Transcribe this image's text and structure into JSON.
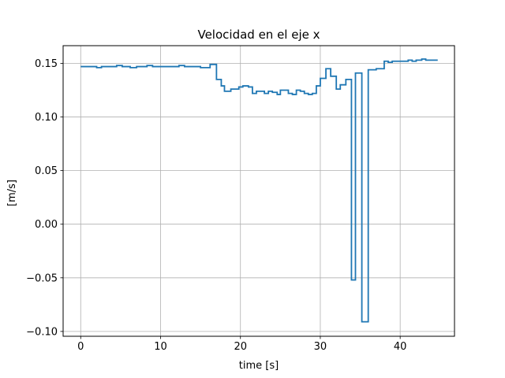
{
  "chart_data": {
    "type": "line",
    "title": "Velocidad en el eje x",
    "xlabel": "time [s]",
    "ylabel": "[m/s]",
    "xlim": [
      -2.2,
      46.8
    ],
    "ylim": [
      -0.1045,
      0.1665
    ],
    "grid": true,
    "line_style": "steps-post",
    "x_ticks": [
      0,
      10,
      20,
      30,
      40
    ],
    "x_tick_labels": [
      "0",
      "10",
      "20",
      "30",
      "40"
    ],
    "y_ticks": [
      -0.1,
      -0.05,
      0.0,
      0.05,
      0.1,
      0.15
    ],
    "y_tick_labels": [
      "−0.10",
      "−0.05",
      "0.00",
      "0.05",
      "0.10",
      "0.15"
    ],
    "colors": {
      "series": "#1f77b4",
      "grid": "#b0b0b0",
      "axes": "#000000"
    },
    "series": [
      {
        "x": [
          0,
          2,
          2.6,
          4.5,
          5.2,
          6.2,
          7,
          8.3,
          9,
          10,
          12.3,
          13,
          14.5,
          15,
          16.2,
          17,
          17.6,
          18,
          18.8,
          19.8,
          20.3,
          21,
          21.5,
          22,
          23,
          23.5,
          24,
          24.6,
          25,
          26,
          26.5,
          27,
          27.5,
          28,
          28.5,
          29,
          29.5,
          30,
          30.7,
          31.3,
          32,
          32.5,
          33.2,
          33.9,
          34.4,
          35.2,
          36,
          37,
          38,
          38.5,
          39,
          40,
          41,
          41.5,
          42,
          42.7,
          43.2,
          44.7
        ],
        "y": [
          0.147,
          0.146,
          0.147,
          0.148,
          0.147,
          0.146,
          0.147,
          0.148,
          0.147,
          0.147,
          0.148,
          0.147,
          0.147,
          0.146,
          0.149,
          0.135,
          0.129,
          0.124,
          0.126,
          0.128,
          0.129,
          0.128,
          0.122,
          0.124,
          0.122,
          0.124,
          0.123,
          0.121,
          0.125,
          0.122,
          0.121,
          0.125,
          0.124,
          0.122,
          0.121,
          0.122,
          0.129,
          0.136,
          0.145,
          0.138,
          0.126,
          0.13,
          0.135,
          -0.052,
          0.141,
          -0.091,
          0.144,
          0.145,
          0.152,
          0.151,
          0.152,
          0.152,
          0.153,
          0.152,
          0.153,
          0.154,
          0.153,
          0.153
        ]
      }
    ]
  }
}
